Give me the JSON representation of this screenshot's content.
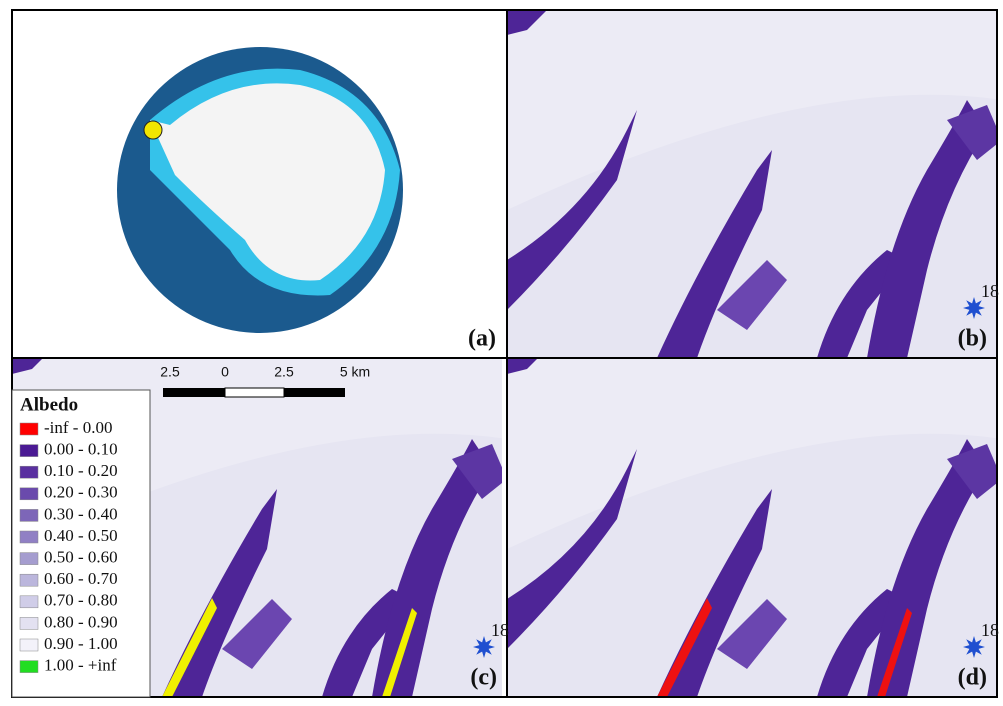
{
  "panels": [
    {
      "label": "(a)"
    },
    {
      "label": "(b)",
      "marker": "18"
    },
    {
      "label": "(c)",
      "marker": "18"
    },
    {
      "label": "(d)",
      "marker": "18"
    }
  ],
  "scale_bar": {
    "labels": [
      "2.5",
      "0",
      "2.5",
      "5 km"
    ]
  },
  "legend": {
    "title": "Albedo",
    "items": [
      {
        "label": "-inf - 0.00",
        "color": "#ff0000"
      },
      {
        "label": "0.00 - 0.10",
        "color": "#4b1a94"
      },
      {
        "label": "0.10 - 0.20",
        "color": "#5a30a0"
      },
      {
        "label": "0.20 - 0.30",
        "color": "#6a4aac"
      },
      {
        "label": "0.30 - 0.40",
        "color": "#7d66b8"
      },
      {
        "label": "0.40 - 0.50",
        "color": "#9080c4"
      },
      {
        "label": "0.50 - 0.60",
        "color": "#a59dcf"
      },
      {
        "label": "0.60 - 0.70",
        "color": "#bbb6dc"
      },
      {
        "label": "0.70 - 0.80",
        "color": "#d0cde8"
      },
      {
        "label": "0.80 - 0.90",
        "color": "#e3e1f1"
      },
      {
        "label": "0.90 - 1.00",
        "color": "#f3f2fa"
      },
      {
        "label": "1.00 - +inf",
        "color": "#22dd22"
      }
    ]
  }
}
